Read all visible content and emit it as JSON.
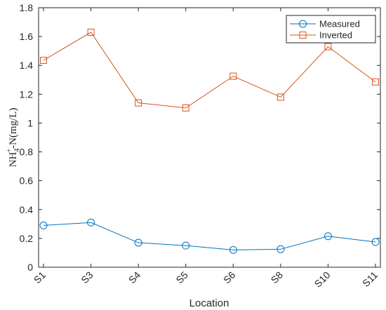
{
  "chart_data": {
    "type": "line",
    "title": "",
    "xlabel": "Location",
    "ylabel": {
      "base": "NH",
      "sub": "4",
      "sup": "+",
      "rest": "-N(mg/L)"
    },
    "categories": [
      "S1",
      "S3",
      "S4",
      "S5",
      "S6",
      "S8",
      "S10",
      "S11"
    ],
    "ylim": [
      0,
      1.8
    ],
    "yticks": [
      0,
      0.2,
      0.4,
      0.6,
      0.8,
      1,
      1.2,
      1.4,
      1.6,
      1.8
    ],
    "ytick_labels": [
      "0",
      "0.2",
      "0.4",
      "0.6",
      "0.8",
      "1",
      "1.2",
      "1.4",
      "1.6",
      "1.8"
    ],
    "grid": false,
    "legend_position": "top-right",
    "series": [
      {
        "name": "Measured",
        "values": [
          0.29,
          0.31,
          0.17,
          0.15,
          0.12,
          0.125,
          0.215,
          0.175
        ],
        "color": "#0072BD",
        "marker": "circle"
      },
      {
        "name": "Inverted",
        "values": [
          1.435,
          1.63,
          1.14,
          1.105,
          1.325,
          1.18,
          1.53,
          1.285
        ],
        "color": "#D95319",
        "marker": "square"
      }
    ]
  }
}
